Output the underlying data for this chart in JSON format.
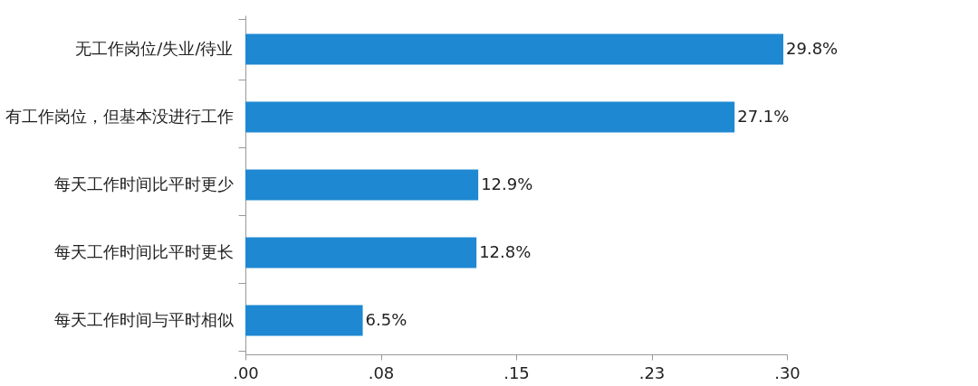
{
  "chart_data": {
    "type": "bar",
    "orientation": "horizontal",
    "categories": [
      "无工作岗位/失业/待业",
      "有工作岗位，但基本没进行工作",
      "每天工作时间比平时更少",
      "每天工作时间比平时更长",
      "每天工作时间与平时相似"
    ],
    "values": [
      0.298,
      0.271,
      0.129,
      0.128,
      0.065
    ],
    "value_labels": [
      "29.8%",
      "27.1%",
      "12.9%",
      "12.8%",
      "6.5%"
    ],
    "color": "#1e88d2",
    "xlim": [
      0,
      0.3
    ],
    "xticks": [
      {
        "value": 0,
        "label": ".00"
      },
      {
        "value": 0.075,
        "label": ".08"
      },
      {
        "value": 0.15,
        "label": ".15"
      },
      {
        "value": 0.225,
        "label": ".23"
      },
      {
        "value": 0.3,
        "label": ".30"
      }
    ],
    "grid": false
  }
}
